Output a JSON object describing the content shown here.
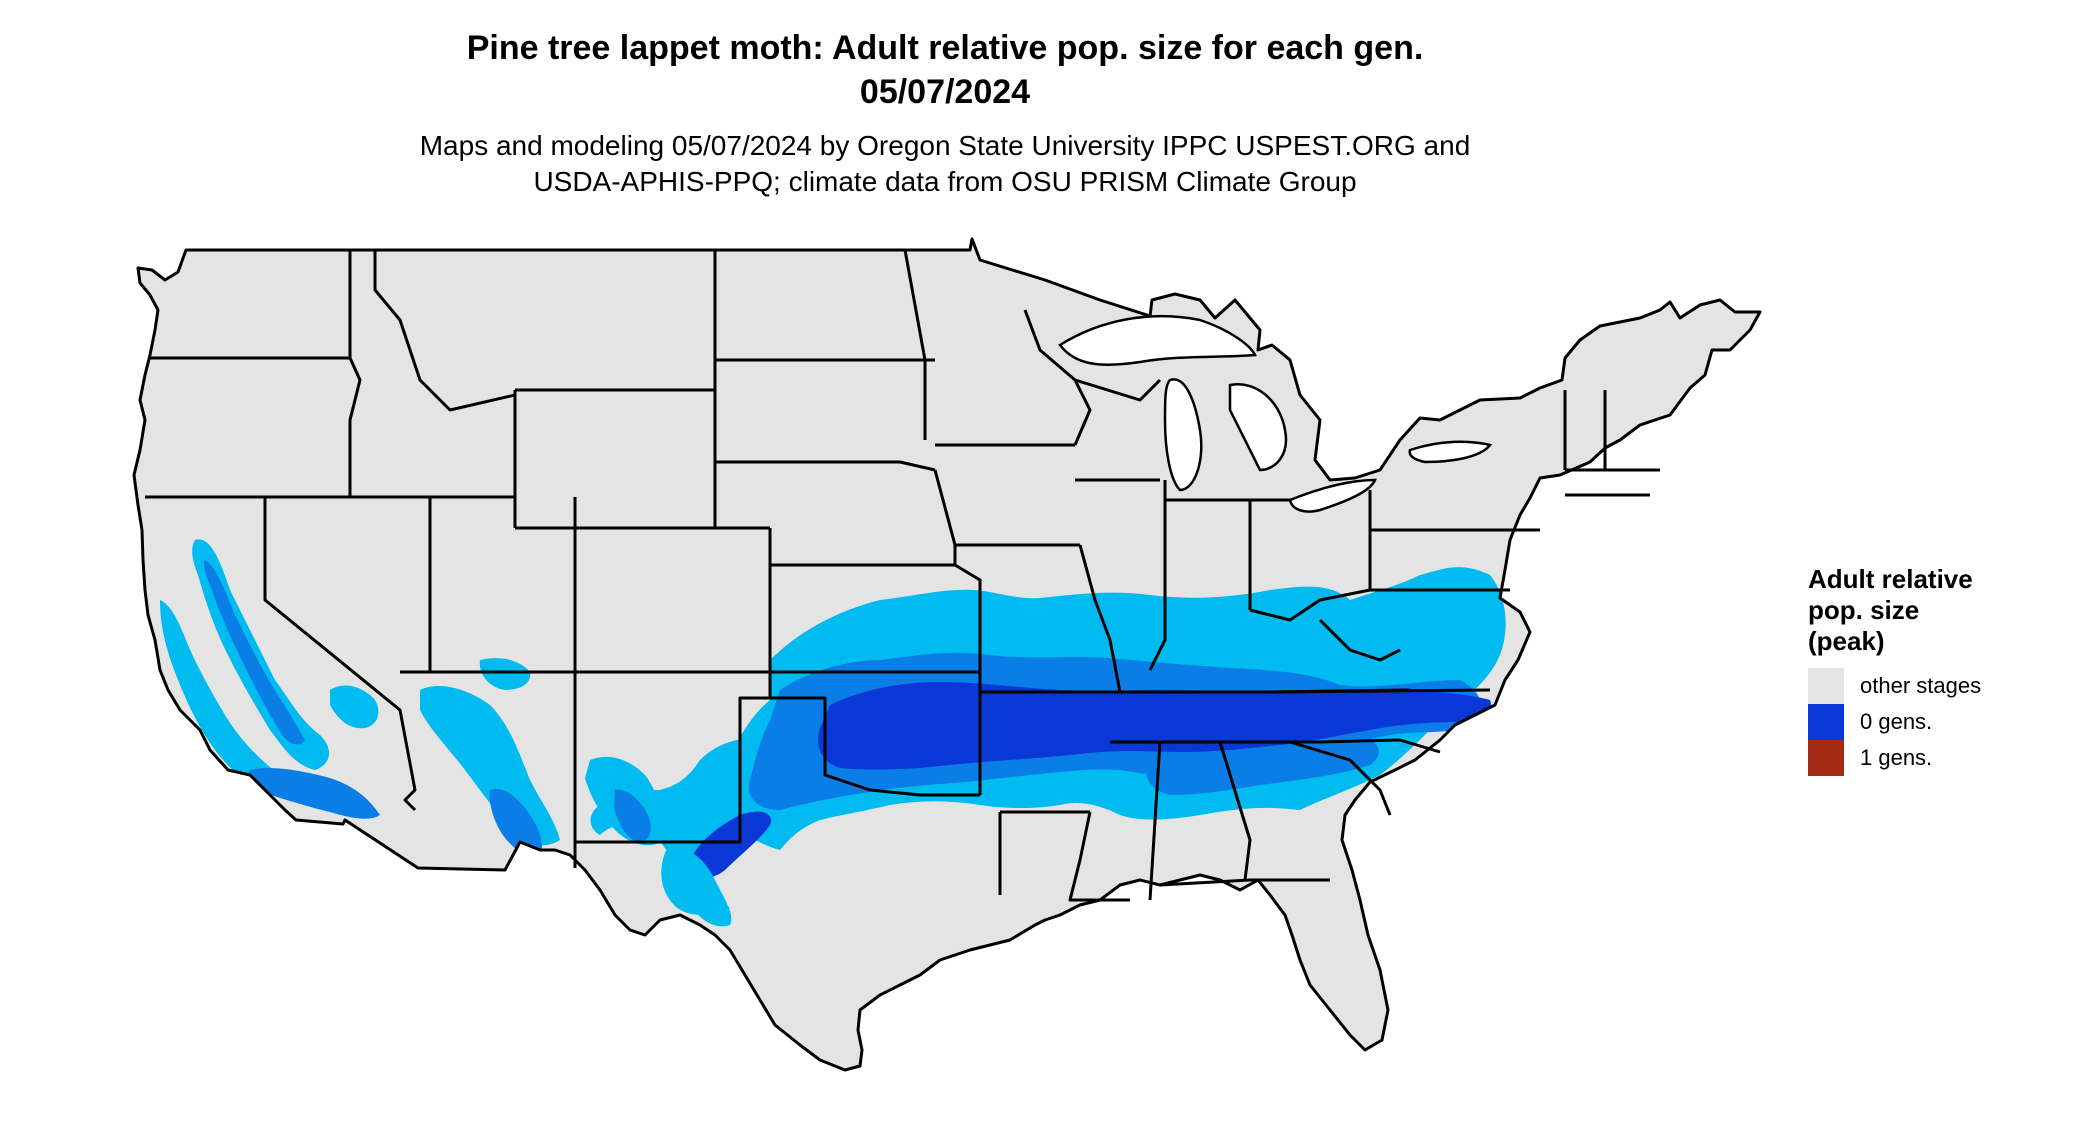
{
  "title": {
    "line1": "Pine tree lappet moth: Adult relative pop. size for each gen.",
    "line2": "05/07/2024"
  },
  "subtitle": {
    "line1": "Maps and modeling 05/07/2024 by Oregon State University IPPC USPEST.ORG and",
    "line2": "USDA-APHIS-PPQ; climate data from OSU PRISM Climate Group"
  },
  "legend": {
    "title_lines": [
      "Adult relative",
      "pop. size",
      "(peak)"
    ],
    "items": [
      {
        "label": "other stages",
        "color": "#e4e4e4"
      },
      {
        "label": "0 gens.",
        "color": "#0a38d6"
      },
      {
        "label": "1 gens.",
        "color": "#a52a14"
      }
    ]
  },
  "colors": {
    "land": "#e4e4e4",
    "light_blue": "#00bbf0",
    "mid_blue": "#0a7ee6",
    "dark_blue": "#0a38d6",
    "red": "#a52a14",
    "borders": "#000000"
  }
}
